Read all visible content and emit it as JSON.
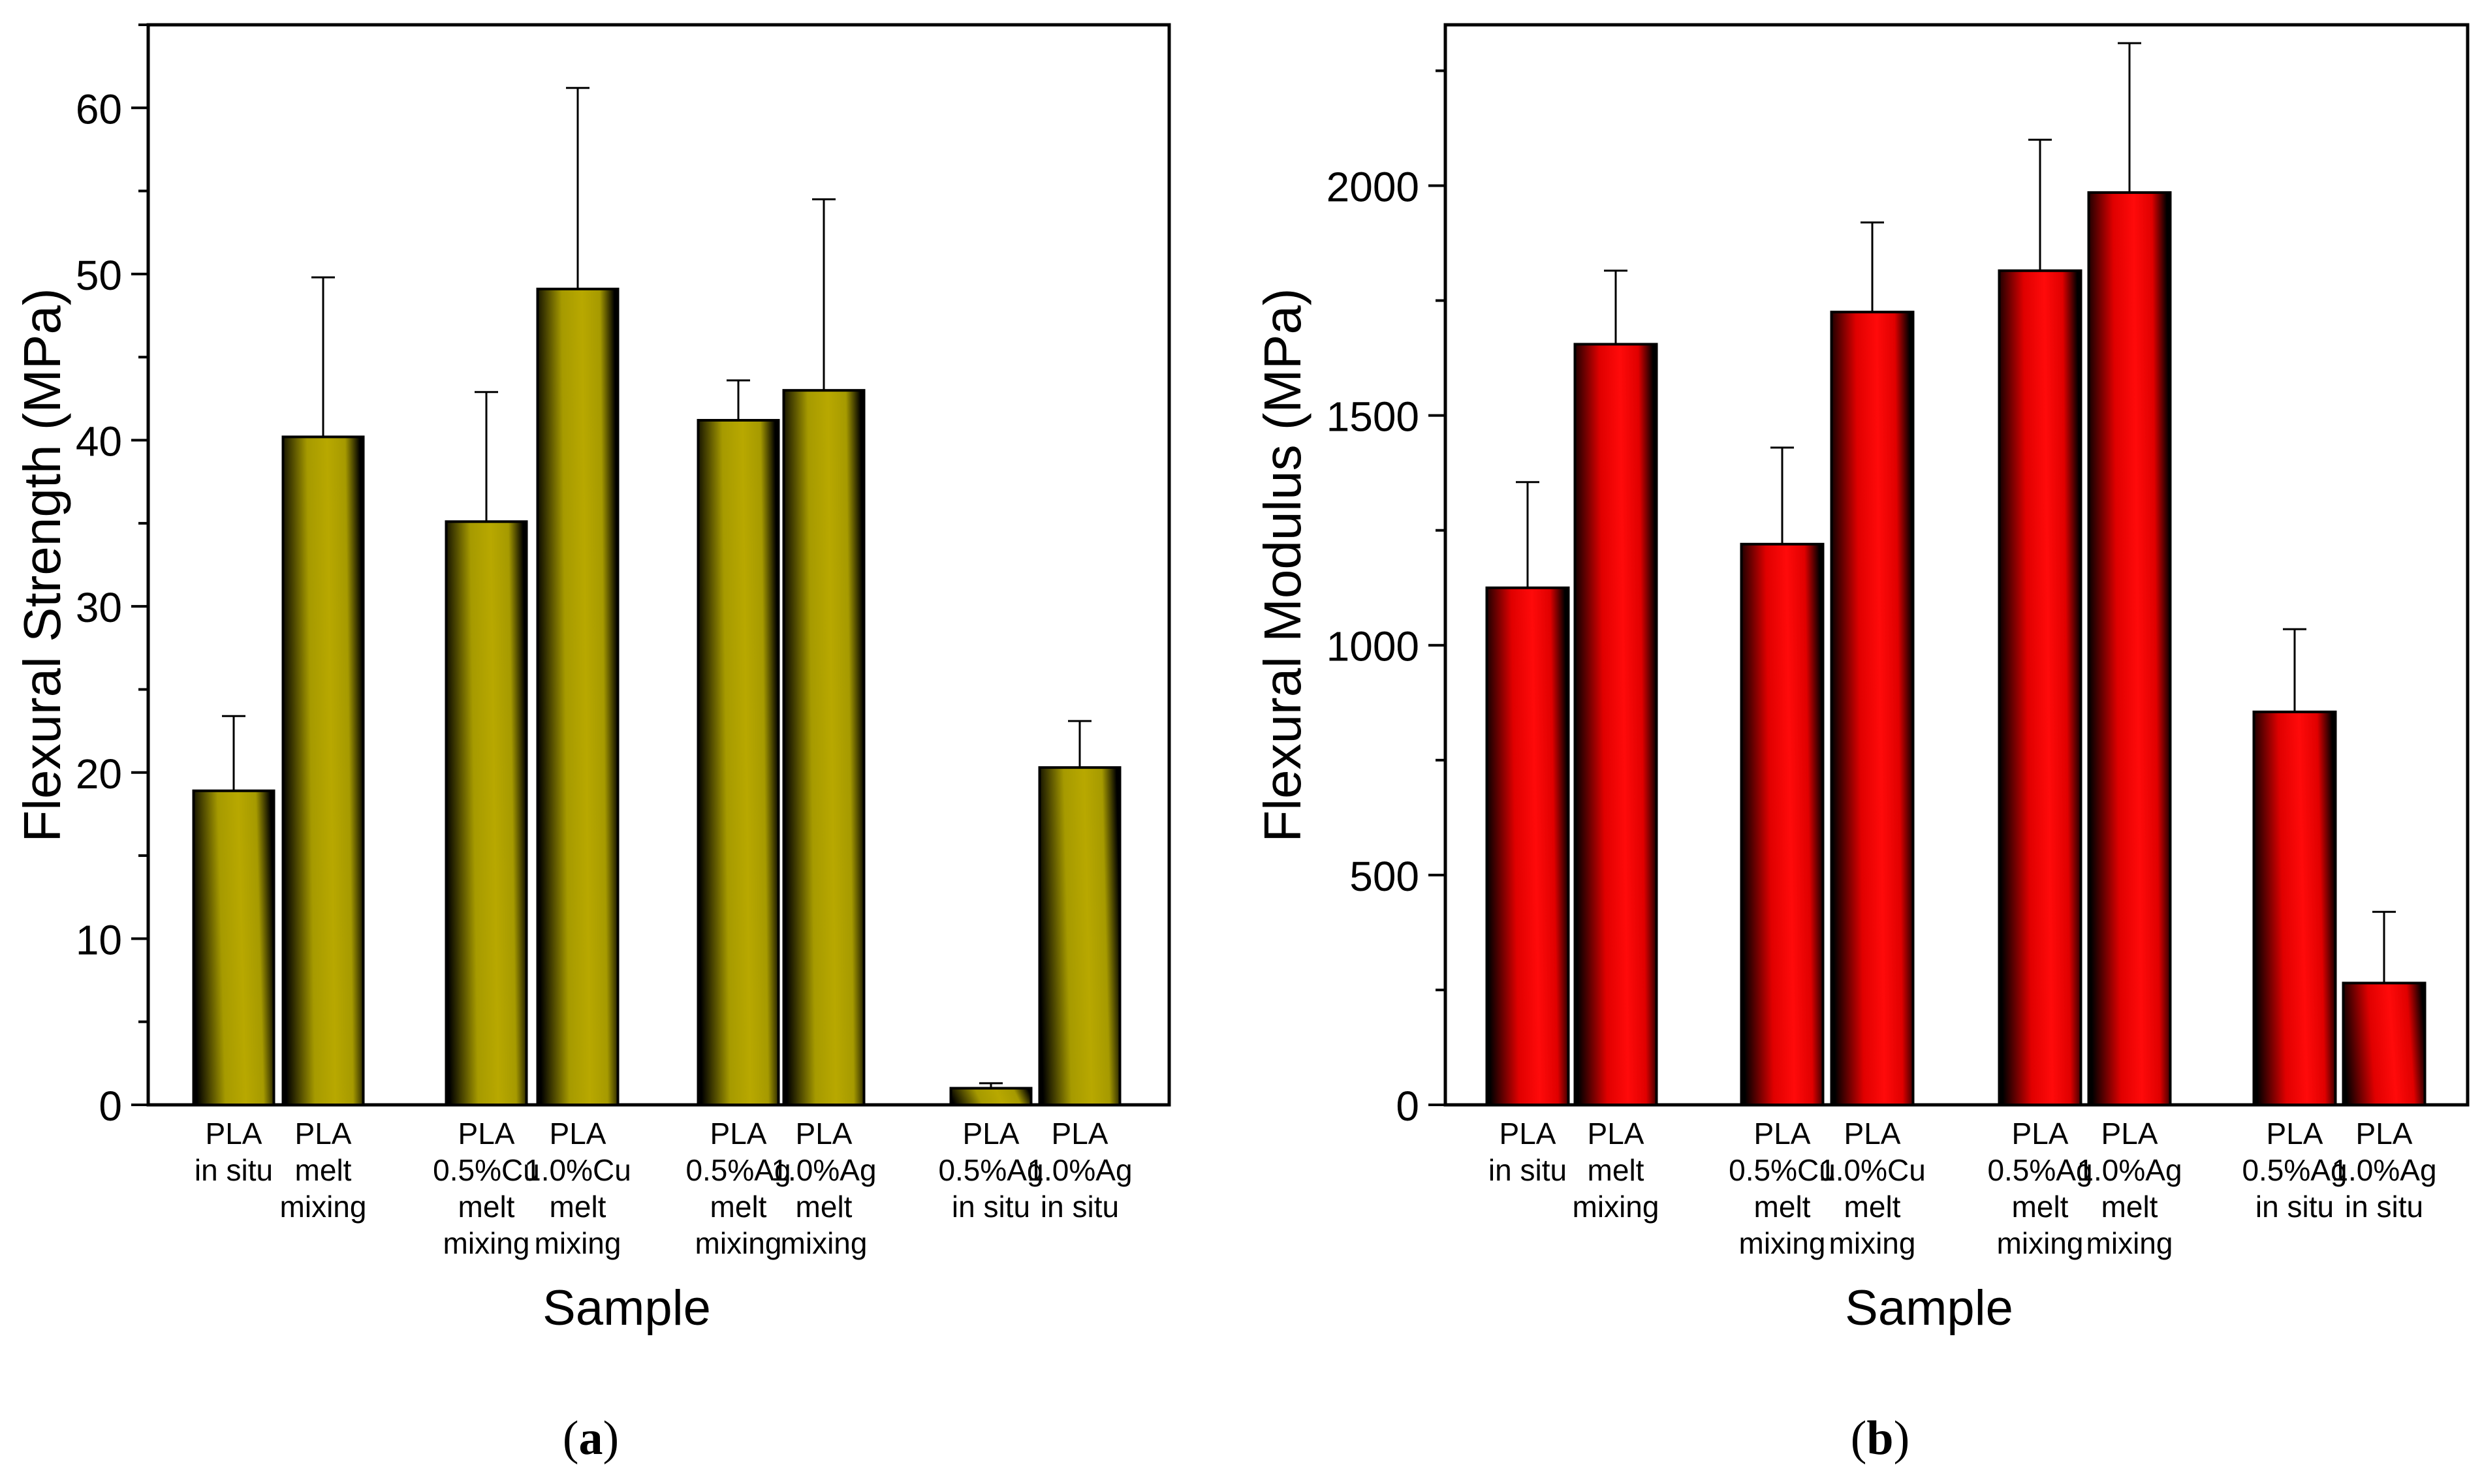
{
  "panels": [
    {
      "id": "a",
      "label": "a",
      "colors": {
        "light": "#b8a800",
        "mid": "#a69a00",
        "dark": "#000000"
      }
    },
    {
      "id": "b",
      "label": "b",
      "colors": {
        "light": "#ff0a0a",
        "mid": "#e00000",
        "dark": "#000000"
      }
    }
  ],
  "chart_data": [
    {
      "type": "bar",
      "xlabel": "Sample",
      "ylabel": "Flexural Strength (MPa)",
      "ylim": [
        0,
        65
      ],
      "yticks": [
        0,
        10,
        20,
        30,
        40,
        50,
        60
      ],
      "grid": false,
      "legend": "none",
      "categories": [
        [
          "PLA",
          "in situ"
        ],
        [
          "PLA",
          "melt",
          "mixing"
        ],
        [
          "PLA",
          "0.5%Cu",
          "melt",
          "mixing"
        ],
        [
          "PLA",
          "1.0%Cu",
          "melt",
          "mixing"
        ],
        [
          "PLA",
          "0.5%Ag",
          "melt",
          "mixing"
        ],
        [
          "PLA",
          "1.0%Ag",
          "melt",
          "mixing"
        ],
        [
          "PLA",
          "0.5%Ag",
          "in situ"
        ],
        [
          "PLA",
          "1.0%Ag",
          "in situ"
        ]
      ],
      "values": [
        18.9,
        40.2,
        35.1,
        49.1,
        41.2,
        43.0,
        1.0,
        20.3
      ],
      "errors": [
        4.5,
        9.6,
        7.8,
        12.1,
        2.4,
        11.5,
        0.3,
        2.8
      ]
    },
    {
      "type": "bar",
      "xlabel": "Sample",
      "ylabel": "Flexural Modulus (MPa)",
      "ylim": [
        0,
        2350
      ],
      "yticks": [
        0,
        500,
        1000,
        1500,
        2000
      ],
      "grid": false,
      "legend": "none",
      "categories": [
        [
          "PLA",
          "in situ"
        ],
        [
          "PLA",
          "melt",
          "mixing"
        ],
        [
          "PLA",
          "0.5%Cu",
          "melt",
          "mixing"
        ],
        [
          "PLA",
          "1.0%Cu",
          "melt",
          "mixing"
        ],
        [
          "PLA",
          "0.5%Ag",
          "melt",
          "mixing"
        ],
        [
          "PLA",
          "1.0%Ag",
          "melt",
          "mixing"
        ],
        [
          "PLA",
          "0.5%Ag",
          "in situ"
        ],
        [
          "PLA",
          "1.0%Ag",
          "in situ"
        ]
      ],
      "values": [
        1125,
        1655,
        1220,
        1725,
        1815,
        1985,
        855,
        265
      ],
      "errors": [
        230,
        160,
        210,
        195,
        285,
        325,
        180,
        155
      ]
    }
  ]
}
